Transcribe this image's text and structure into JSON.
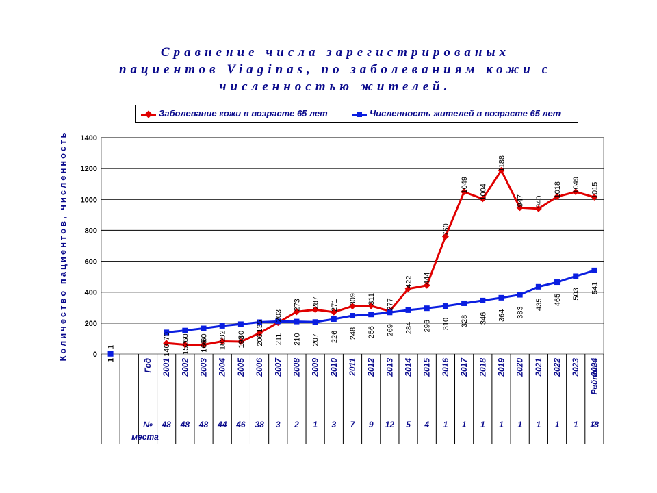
{
  "title": {
    "line1": "Сравнение числа зарегистрированых",
    "line2": "пациентов Viaginas, по заболеваниям кожи с",
    "line3": "численностью жителей."
  },
  "legend": {
    "series1": "Заболевание кожи в возрасте 65 лет",
    "series2": "Численность жителей в возрасте 65 лет"
  },
  "colors": {
    "series1": "#e00000",
    "series2": "#0a1ee0",
    "text": "#0a0a8c"
  },
  "chart_data": {
    "type": "line",
    "ylabel": "Количество пациентов, численность",
    "ylim": [
      0,
      1400
    ],
    "yticks": [
      0,
      200,
      400,
      600,
      800,
      1000,
      1200,
      1400
    ],
    "grid": true,
    "legend_position": "top",
    "first_point": {
      "category": "1",
      "label": "1",
      "value": 1
    },
    "row_header_year": "Год",
    "row_header_place": "№ места",
    "categories": [
      "2001",
      "2002",
      "2003",
      "2004",
      "2005",
      "2006",
      "2007",
      "2008",
      "2009",
      "2010",
      "2011",
      "2012",
      "2013",
      "2014",
      "2015",
      "2016",
      "2017",
      "2018",
      "2019",
      "2020",
      "2021",
      "2022",
      "2023",
      "2024"
    ],
    "trailing_year_label": "Рейтинг",
    "places": [
      "48",
      "48",
      "48",
      "44",
      "46",
      "38",
      "3",
      "2",
      "1",
      "3",
      "7",
      "9",
      "12",
      "5",
      "4",
      "1",
      "1",
      "1",
      "1",
      "1",
      "1",
      "1",
      "1",
      "2"
    ],
    "trailing_place": "13",
    "series": [
      {
        "name": "Заболевание кожи в возрасте 65 лет",
        "values": [
          70,
          60,
          60,
          82,
          80,
          135,
          203,
          273,
          287,
          271,
          309,
          311,
          277,
          422,
          444,
          760,
          1049,
          1004,
          1188,
          947,
          940,
          1018,
          1049,
          1015
        ],
        "labels": [
          "70",
          "60",
          "60",
          "82",
          "80",
          "135",
          "203",
          "273",
          "287",
          "271",
          "309",
          "311",
          "277",
          "422",
          "444",
          "760",
          "1049",
          "1004",
          "1188",
          "947",
          "940",
          "1018",
          "1049",
          "1015"
        ]
      },
      {
        "name": "Численность жителей в возрасте 65 лет",
        "values": [
          140,
          152,
          166,
          182,
          193,
          206,
          211,
          210,
          207,
          226,
          248,
          256,
          269,
          284,
          296,
          310,
          328,
          346,
          364,
          383,
          435,
          465,
          503,
          541
        ],
        "labels": [
          "140",
          "152",
          "166",
          "182",
          "193",
          "206",
          "211",
          "210",
          "207",
          "226",
          "248",
          "256",
          "269",
          "284",
          "296",
          "310",
          "328",
          "346",
          "364",
          "383",
          "435",
          "465",
          "503",
          "541"
        ]
      }
    ]
  }
}
